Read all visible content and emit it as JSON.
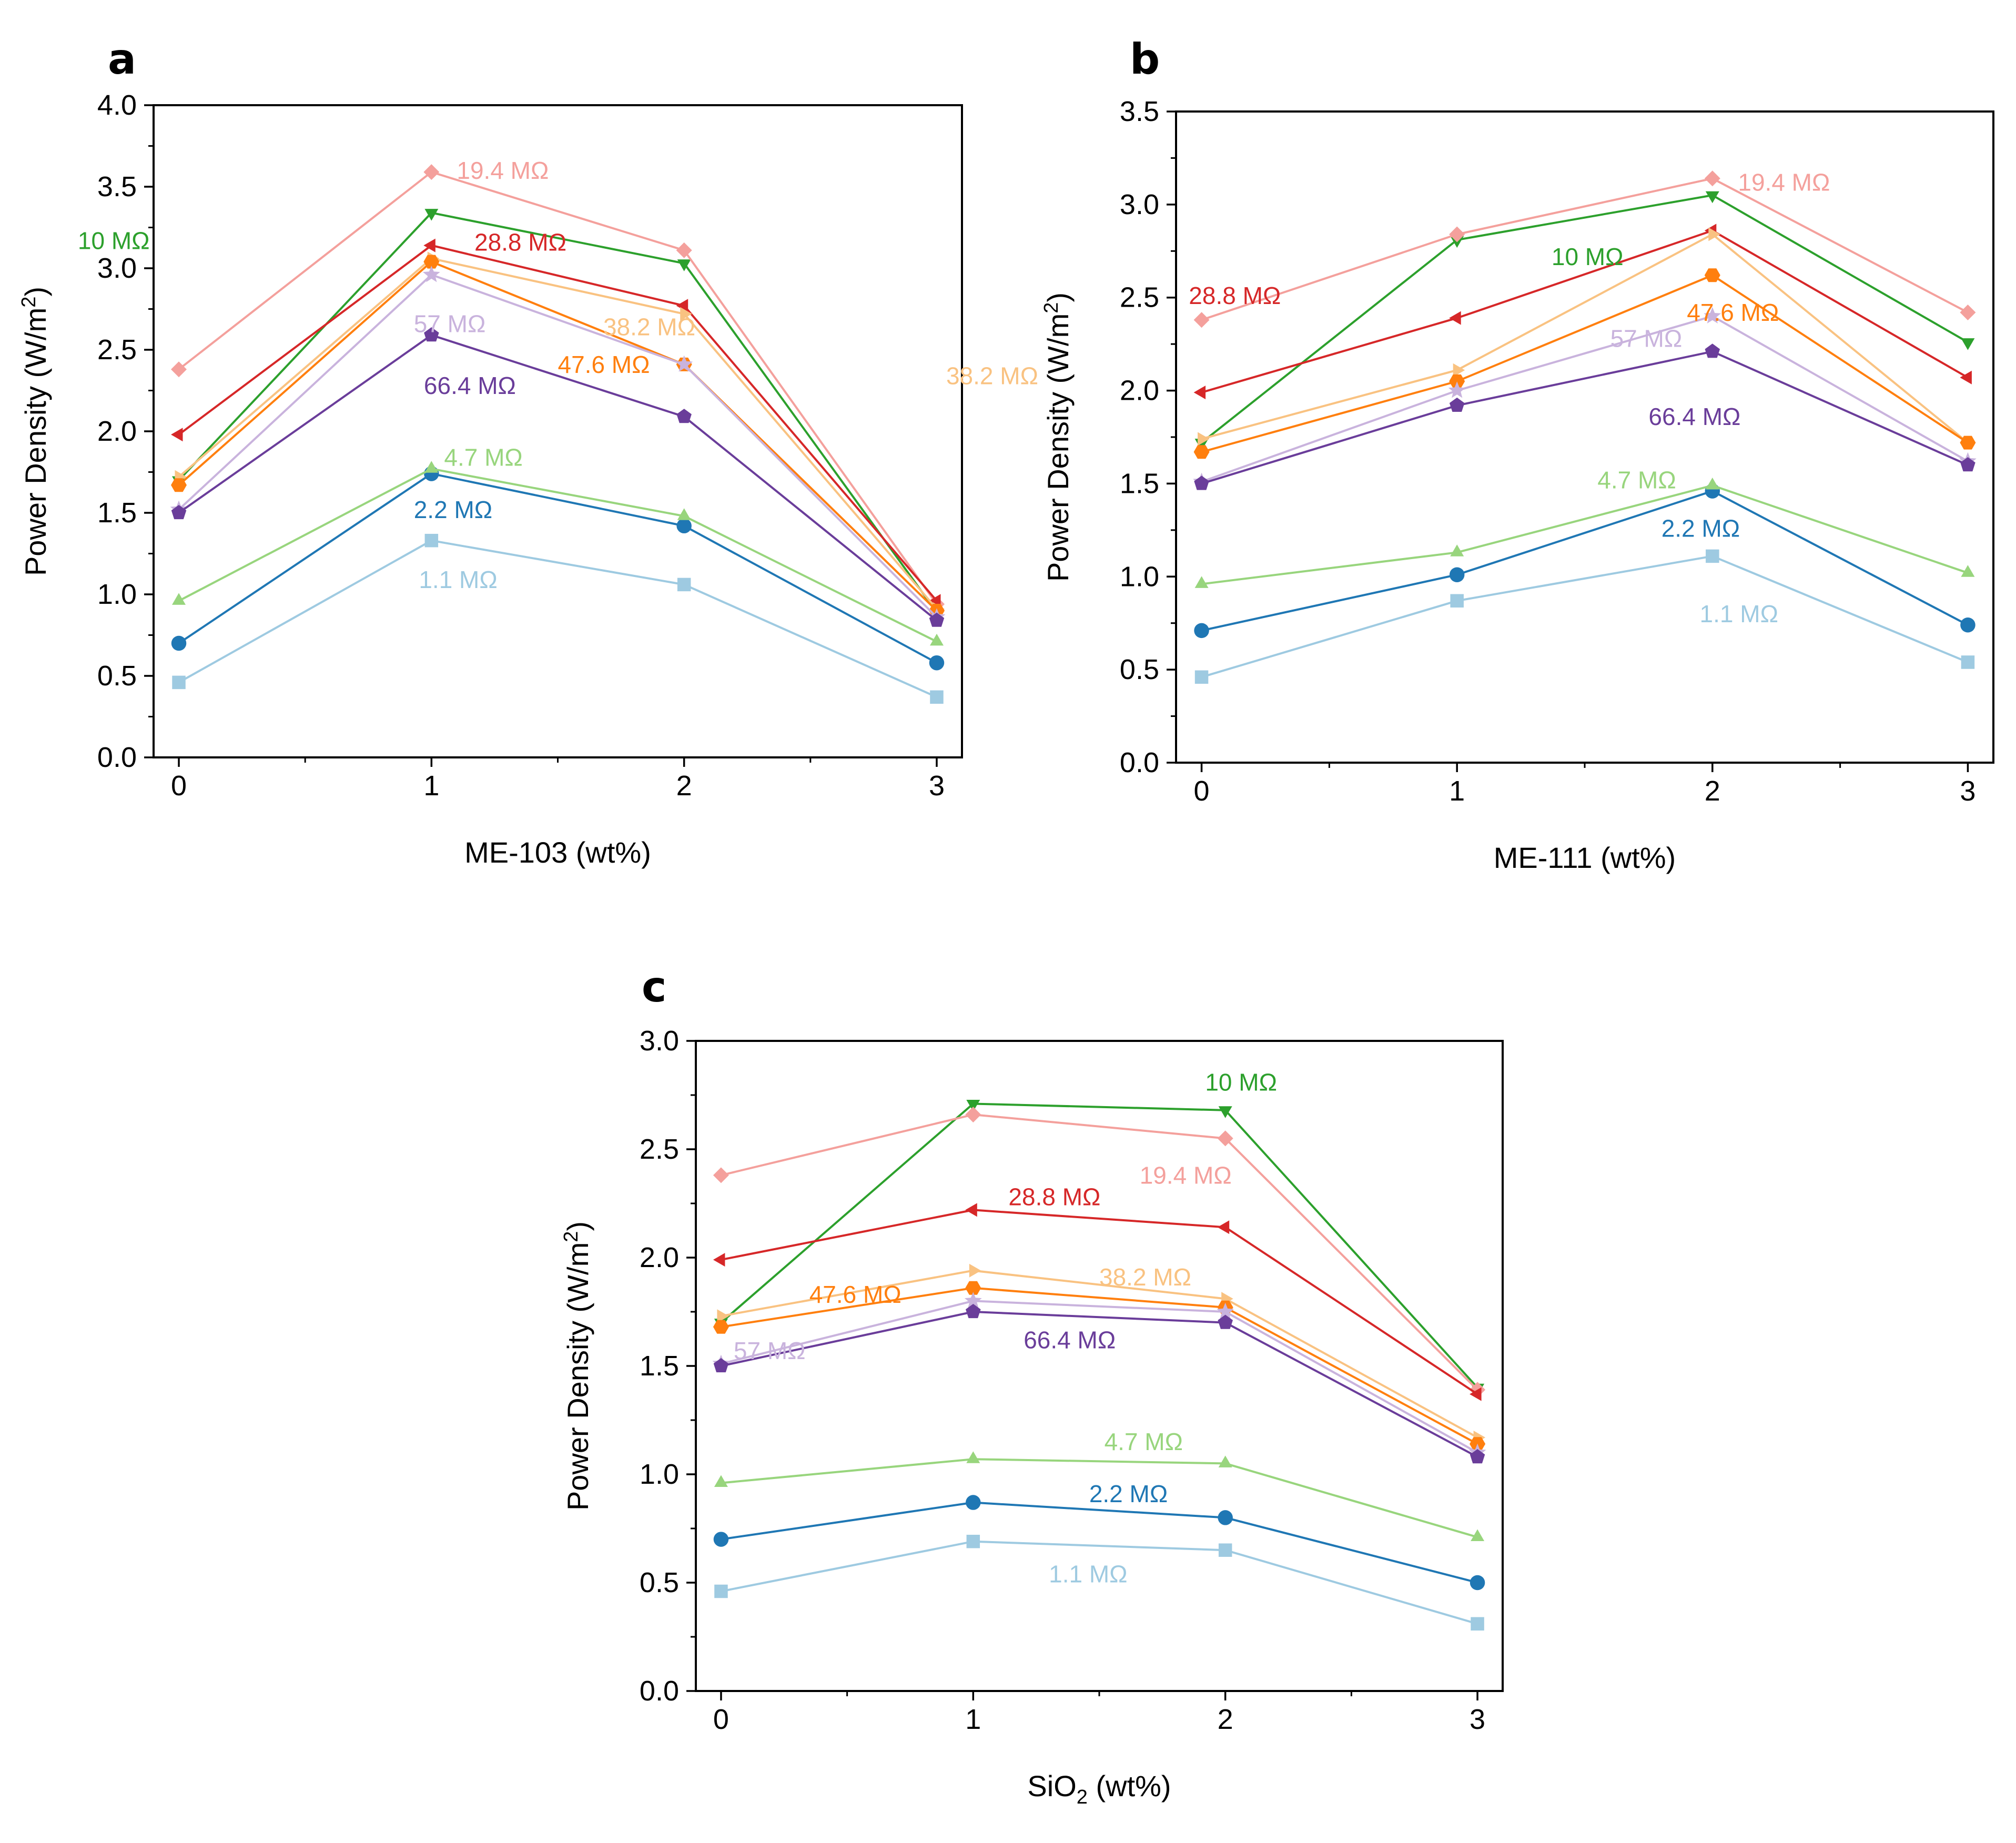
{
  "figure": {
    "y_axis_title": "Power Density (W/m",
    "y_axis_title_sup": "2",
    "y_axis_title_end": ")"
  },
  "series_info": [
    {
      "key": "1.1",
      "label": "1.1 MΩ",
      "color": "#9ecae1",
      "marker": "square"
    },
    {
      "key": "2.2",
      "label": "2.2 MΩ",
      "color": "#1f77b4",
      "marker": "circle"
    },
    {
      "key": "4.7",
      "label": "4.7 MΩ",
      "color": "#98d57d",
      "marker": "triangle-up"
    },
    {
      "key": "10",
      "label": "10 MΩ",
      "color": "#2ca02c",
      "marker": "triangle-down"
    },
    {
      "key": "19.4",
      "label": "19.4 MΩ",
      "color": "#f4a09c",
      "marker": "diamond"
    },
    {
      "key": "28.8",
      "label": "28.8 MΩ",
      "color": "#d62728",
      "marker": "triangle-left"
    },
    {
      "key": "38.2",
      "label": "38.2 MΩ",
      "color": "#f9c281",
      "marker": "triangle-right"
    },
    {
      "key": "47.6",
      "label": "47.6 MΩ",
      "color": "#ff7f0e",
      "marker": "hexagon"
    },
    {
      "key": "57",
      "label": "57 MΩ",
      "color": "#c9b3dd",
      "marker": "star"
    },
    {
      "key": "66.4",
      "label": "66.4 MΩ",
      "color": "#6a3d9a",
      "marker": "pentagon"
    }
  ],
  "chart_data": [
    {
      "panel": "a",
      "type": "line",
      "xlabel": "ME-103 (wt%)",
      "ylabel": "Power Density (W/m2)",
      "x": [
        0,
        1,
        2,
        3
      ],
      "xlim": [
        -0.1,
        3.1
      ],
      "ylim": [
        0,
        4.0
      ],
      "yticks": [
        0.0,
        0.5,
        1.0,
        1.5,
        2.0,
        2.5,
        3.0,
        3.5,
        4.0
      ],
      "yticklabels": [
        "0.0",
        "0.5",
        "1.0",
        "1.5",
        "2.0",
        "2.5",
        "3.0",
        "3.5",
        "4.0"
      ],
      "xticklabels": [
        "0",
        "1",
        "2",
        "3"
      ],
      "series": [
        {
          "key": "1.1",
          "values": [
            0.46,
            1.33,
            1.06,
            0.37
          ]
        },
        {
          "key": "2.2",
          "values": [
            0.7,
            1.74,
            1.42,
            0.58
          ]
        },
        {
          "key": "4.7",
          "values": [
            0.96,
            1.77,
            1.48,
            0.71
          ]
        },
        {
          "key": "10",
          "values": [
            1.7,
            3.34,
            3.03,
            0.89
          ]
        },
        {
          "key": "19.4",
          "values": [
            2.38,
            3.59,
            3.11,
            0.94
          ]
        },
        {
          "key": "28.8",
          "values": [
            1.98,
            3.14,
            2.77,
            0.96
          ]
        },
        {
          "key": "38.2",
          "values": [
            1.72,
            3.06,
            2.72,
            0.91
          ]
        },
        {
          "key": "47.6",
          "values": [
            1.67,
            3.04,
            2.41,
            0.9
          ]
        },
        {
          "key": "57",
          "values": [
            1.52,
            2.96,
            2.41,
            0.86
          ]
        },
        {
          "key": "66.4",
          "values": [
            1.5,
            2.59,
            2.09,
            0.84
          ]
        }
      ],
      "annotations": [
        {
          "key": "19.4",
          "text": "19.4 MΩ",
          "x": 1.1,
          "y": 3.6
        },
        {
          "key": "10",
          "text": "10 MΩ",
          "x": -0.4,
          "y": 3.17
        },
        {
          "key": "28.8",
          "text": "28.8 MΩ",
          "x": 1.17,
          "y": 3.16
        },
        {
          "key": "57",
          "text": "57 MΩ",
          "x": 0.93,
          "y": 2.66
        },
        {
          "key": "38.2",
          "text": "38.2 MΩ",
          "x": 1.68,
          "y": 2.64
        },
        {
          "key": "47.6",
          "text": "47.6 MΩ",
          "x": 1.5,
          "y": 2.41
        },
        {
          "key": "66.4",
          "text": "66.4 MΩ",
          "x": 0.97,
          "y": 2.28
        },
        {
          "key": "4.7",
          "text": "4.7 MΩ",
          "x": 1.05,
          "y": 1.84
        },
        {
          "key": "2.2",
          "text": "2.2 MΩ",
          "x": 0.93,
          "y": 1.52
        },
        {
          "key": "1.1",
          "text": "1.1 MΩ",
          "x": 0.95,
          "y": 1.09
        }
      ]
    },
    {
      "panel": "b",
      "type": "line",
      "xlabel": "ME-111 (wt%)",
      "ylabel": "Power Density (W/m2)",
      "x": [
        0,
        1,
        2,
        3
      ],
      "xlim": [
        -0.1,
        3.1
      ],
      "ylim": [
        0,
        3.5
      ],
      "yticks": [
        0.0,
        0.5,
        1.0,
        1.5,
        2.0,
        2.5,
        3.0,
        3.5
      ],
      "yticklabels": [
        "0.0",
        "0.5",
        "1.0",
        "1.5",
        "2.0",
        "2.5",
        "3.0",
        "3.5"
      ],
      "xticklabels": [
        "0",
        "1",
        "2",
        "3"
      ],
      "series": [
        {
          "key": "1.1",
          "values": [
            0.46,
            0.87,
            1.11,
            0.54
          ]
        },
        {
          "key": "2.2",
          "values": [
            0.71,
            1.01,
            1.46,
            0.74
          ]
        },
        {
          "key": "4.7",
          "values": [
            0.96,
            1.13,
            1.49,
            1.02
          ]
        },
        {
          "key": "10",
          "values": [
            1.72,
            2.81,
            3.05,
            2.26
          ]
        },
        {
          "key": "19.4",
          "values": [
            2.38,
            2.84,
            3.14,
            2.42
          ]
        },
        {
          "key": "28.8",
          "values": [
            1.99,
            2.39,
            2.86,
            2.07
          ]
        },
        {
          "key": "38.2",
          "values": [
            1.74,
            2.11,
            2.84,
            1.72
          ]
        },
        {
          "key": "47.6",
          "values": [
            1.67,
            2.05,
            2.62,
            1.72
          ]
        },
        {
          "key": "57",
          "values": [
            1.51,
            2.0,
            2.4,
            1.62
          ]
        },
        {
          "key": "66.4",
          "values": [
            1.5,
            1.92,
            2.21,
            1.6
          ]
        }
      ],
      "annotations": [
        {
          "key": "19.4",
          "text": "19.4 MΩ",
          "x": 2.1,
          "y": 3.12
        },
        {
          "key": "10",
          "text": "10 MΩ",
          "x": 1.37,
          "y": 2.72
        },
        {
          "key": "28.8",
          "text": "28.8 MΩ",
          "x": -0.05,
          "y": 2.51
        },
        {
          "key": "47.6",
          "text": "47.6 MΩ",
          "x": 1.9,
          "y": 2.42
        },
        {
          "key": "57",
          "text": "57 MΩ",
          "x": 1.6,
          "y": 2.28
        },
        {
          "key": "38.2",
          "text": "38.2 MΩ",
          "x": -1.0,
          "y": 2.08
        },
        {
          "key": "66.4",
          "text": "66.4 MΩ",
          "x": 1.75,
          "y": 1.86
        },
        {
          "key": "4.7",
          "text": "4.7 MΩ",
          "x": 1.55,
          "y": 1.52
        },
        {
          "key": "2.2",
          "text": "2.2 MΩ",
          "x": 1.8,
          "y": 1.26
        },
        {
          "key": "1.1",
          "text": "1.1 MΩ",
          "x": 1.95,
          "y": 0.8
        }
      ]
    },
    {
      "panel": "c",
      "type": "line",
      "xlabel": "SiO",
      "xlabel_sub": "2",
      "xlabel_end": " (wt%)",
      "ylabel": "Power Density (W/m2)",
      "x": [
        0,
        1,
        2,
        3
      ],
      "xlim": [
        -0.1,
        3.1
      ],
      "ylim": [
        0,
        3.0
      ],
      "yticks": [
        0.0,
        0.5,
        1.0,
        1.5,
        2.0,
        2.5,
        3.0
      ],
      "yticklabels": [
        "0.0",
        "0.5",
        "1.0",
        "1.5",
        "2.0",
        "2.5",
        "3.0"
      ],
      "xticklabels": [
        "0",
        "1",
        "2",
        "3"
      ],
      "series": [
        {
          "key": "1.1",
          "values": [
            0.46,
            0.69,
            0.65,
            0.31
          ]
        },
        {
          "key": "2.2",
          "values": [
            0.7,
            0.87,
            0.8,
            0.5
          ]
        },
        {
          "key": "4.7",
          "values": [
            0.96,
            1.07,
            1.05,
            0.71
          ]
        },
        {
          "key": "10",
          "values": [
            1.7,
            2.71,
            2.68,
            1.4
          ]
        },
        {
          "key": "19.4",
          "values": [
            2.38,
            2.66,
            2.55,
            1.39
          ]
        },
        {
          "key": "28.8",
          "values": [
            1.99,
            2.22,
            2.14,
            1.37
          ]
        },
        {
          "key": "38.2",
          "values": [
            1.73,
            1.94,
            1.81,
            1.17
          ]
        },
        {
          "key": "47.6",
          "values": [
            1.68,
            1.86,
            1.77,
            1.14
          ]
        },
        {
          "key": "57",
          "values": [
            1.51,
            1.8,
            1.75,
            1.1
          ]
        },
        {
          "key": "66.4",
          "values": [
            1.5,
            1.75,
            1.7,
            1.08
          ]
        }
      ],
      "annotations": [
        {
          "key": "10",
          "text": "10 MΩ",
          "x": 1.92,
          "y": 2.81
        },
        {
          "key": "19.4",
          "text": "19.4 MΩ",
          "x": 1.66,
          "y": 2.38
        },
        {
          "key": "28.8",
          "text": "28.8 MΩ",
          "x": 1.14,
          "y": 2.28
        },
        {
          "key": "47.6",
          "text": "47.6 MΩ",
          "x": 0.35,
          "y": 1.83
        },
        {
          "key": "38.2",
          "text": "38.2 MΩ",
          "x": 1.5,
          "y": 1.91
        },
        {
          "key": "57",
          "text": "57 MΩ",
          "x": 0.05,
          "y": 1.57
        },
        {
          "key": "66.4",
          "text": "66.4 MΩ",
          "x": 1.2,
          "y": 1.62
        },
        {
          "key": "4.7",
          "text": "4.7 MΩ",
          "x": 1.52,
          "y": 1.15
        },
        {
          "key": "2.2",
          "text": "2.2 MΩ",
          "x": 1.46,
          "y": 0.91
        },
        {
          "key": "1.1",
          "text": "1.1 MΩ",
          "x": 1.3,
          "y": 0.54
        }
      ]
    }
  ]
}
